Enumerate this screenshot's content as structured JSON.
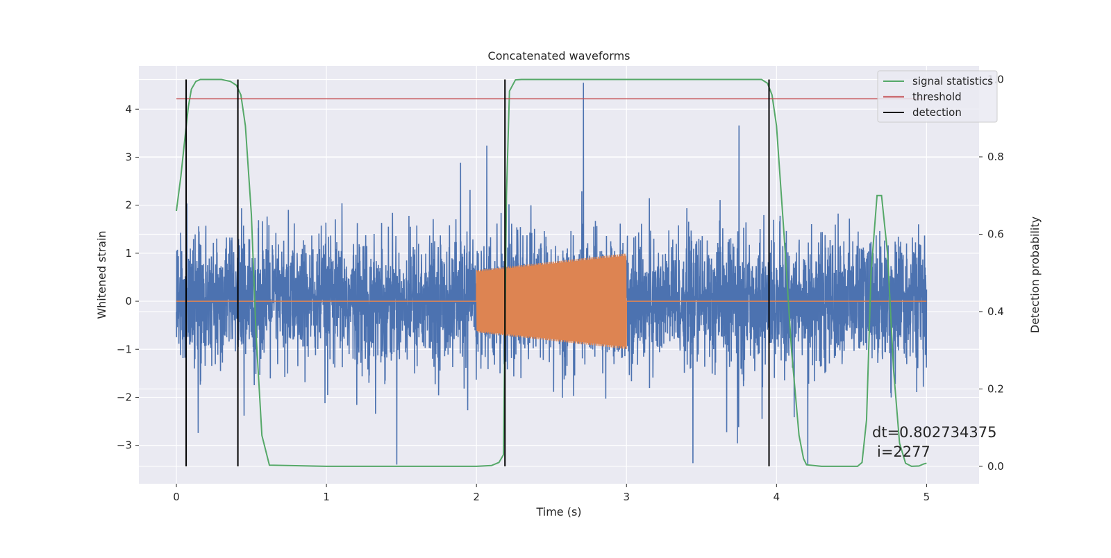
{
  "chart_data": {
    "type": "line",
    "title": "Concatenated waveforms",
    "xlabel": "Time (s)",
    "ylabel": "Whitened strain",
    "ylabel_right": "Detection probability",
    "xlim": [
      -0.25,
      5.35
    ],
    "ylim": [
      -3.8,
      4.9
    ],
    "ylim_right": [
      -0.045,
      1.035
    ],
    "x_ticks": [
      0,
      1,
      2,
      3,
      4,
      5
    ],
    "y_ticks": [
      -3,
      -2,
      -1,
      0,
      1,
      2,
      3,
      4
    ],
    "y_ticks_right": [
      0.0,
      0.2,
      0.4,
      0.6,
      0.8,
      1.0
    ],
    "y_ticks_right_labels": [
      "0.0",
      "0.2",
      "0.4",
      "0.6",
      "0.8",
      "1.0"
    ],
    "grid": true,
    "legend_position": "top-right",
    "colors": {
      "strain": "#4c72b0",
      "injected": "#dd8452",
      "signal_statistics": "#55a868",
      "threshold": "#c44e52",
      "detection": "#000000",
      "axes_bg": "#eaeaf2",
      "grid": "#ffffff"
    },
    "series": [
      {
        "name": "signal statistics",
        "axis": "right",
        "x": [
          0.0,
          0.03,
          0.06,
          0.08,
          0.1,
          0.13,
          0.16,
          0.2,
          0.3,
          0.36,
          0.4,
          0.43,
          0.46,
          0.5,
          0.53,
          0.57,
          0.62,
          1.0,
          1.5,
          2.0,
          2.1,
          2.15,
          2.18,
          2.2,
          2.22,
          2.26,
          2.3,
          2.5,
          3.0,
          3.5,
          3.9,
          3.94,
          3.97,
          4.0,
          4.05,
          4.1,
          4.15,
          4.18,
          4.2,
          4.3,
          4.4,
          4.5,
          4.54,
          4.57,
          4.6,
          4.63,
          4.67,
          4.7,
          4.74,
          4.78,
          4.82,
          4.86,
          4.9,
          4.95,
          4.98,
          5.0
        ],
        "y": [
          0.66,
          0.75,
          0.86,
          0.93,
          0.975,
          0.995,
          1.0,
          1.0,
          1.0,
          0.995,
          0.985,
          0.96,
          0.88,
          0.65,
          0.35,
          0.08,
          0.003,
          0.0,
          0.0,
          0.0,
          0.002,
          0.01,
          0.03,
          0.7,
          0.97,
          0.999,
          1.0,
          1.0,
          1.0,
          1.0,
          1.0,
          0.99,
          0.96,
          0.88,
          0.6,
          0.3,
          0.08,
          0.02,
          0.004,
          0.0,
          0.0,
          0.0,
          0.0,
          0.01,
          0.12,
          0.5,
          0.7,
          0.7,
          0.55,
          0.25,
          0.06,
          0.008,
          0.0,
          0.001,
          0.006,
          0.008
        ]
      },
      {
        "name": "threshold",
        "axis": "right",
        "x": [
          0.0,
          5.0
        ],
        "y": [
          0.95,
          0.95
        ]
      },
      {
        "name": "detection",
        "axis": "right",
        "x_positions": [
          0.065,
          0.41,
          2.19,
          3.95
        ],
        "y_range": [
          0.0,
          1.0
        ]
      }
    ],
    "background_traces": [
      {
        "role": "whitened-noise",
        "axis": "left",
        "x_range": [
          0.0,
          5.0
        ],
        "approx_std": 0.65,
        "approx_extremes": [
          -3.4,
          4.55
        ]
      },
      {
        "role": "injected-waveform",
        "axis": "left",
        "x_range": [
          2.0,
          3.0
        ],
        "amplitude_start": 0.65,
        "amplitude_end": 1.0,
        "baseline": 0.0
      }
    ],
    "annotations": [
      "dt=0.802734375",
      "i=2277"
    ]
  }
}
